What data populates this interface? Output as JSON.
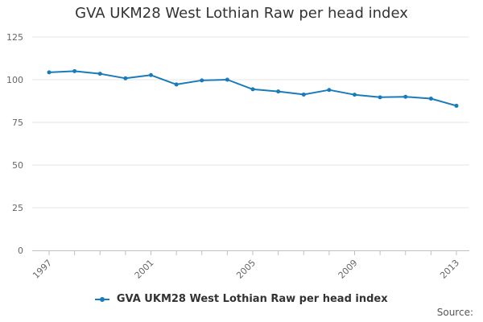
{
  "colors": {
    "series": "#1b7bb8",
    "grid": "#e6e6e6",
    "axis": "#c0c0c0"
  },
  "chart_data": {
    "type": "line",
    "title": "GVA UKM28 West Lothian Raw per head index",
    "xlabel": "",
    "ylabel": "",
    "x": [
      1997,
      1998,
      1999,
      2000,
      2001,
      2002,
      2003,
      2004,
      2005,
      2006,
      2007,
      2008,
      2009,
      2010,
      2011,
      2012,
      2013
    ],
    "xtick_labels": [
      "1997",
      "2001",
      "2005",
      "2009",
      "2013"
    ],
    "ytick_labels": [
      "0",
      "25",
      "50",
      "75",
      "100",
      "125"
    ],
    "ylim": [
      0,
      125
    ],
    "grid": true,
    "legend_position": "bottom",
    "series": [
      {
        "name": "GVA UKM28 West Lothian Raw per head index",
        "values": [
          104.3,
          105.0,
          103.5,
          100.8,
          102.7,
          97.2,
          99.6,
          100.0,
          94.4,
          93.1,
          91.3,
          94.0,
          91.2,
          89.7,
          90.0,
          88.9,
          84.7
        ]
      }
    ]
  },
  "footer": {
    "source_label": "Source:"
  }
}
